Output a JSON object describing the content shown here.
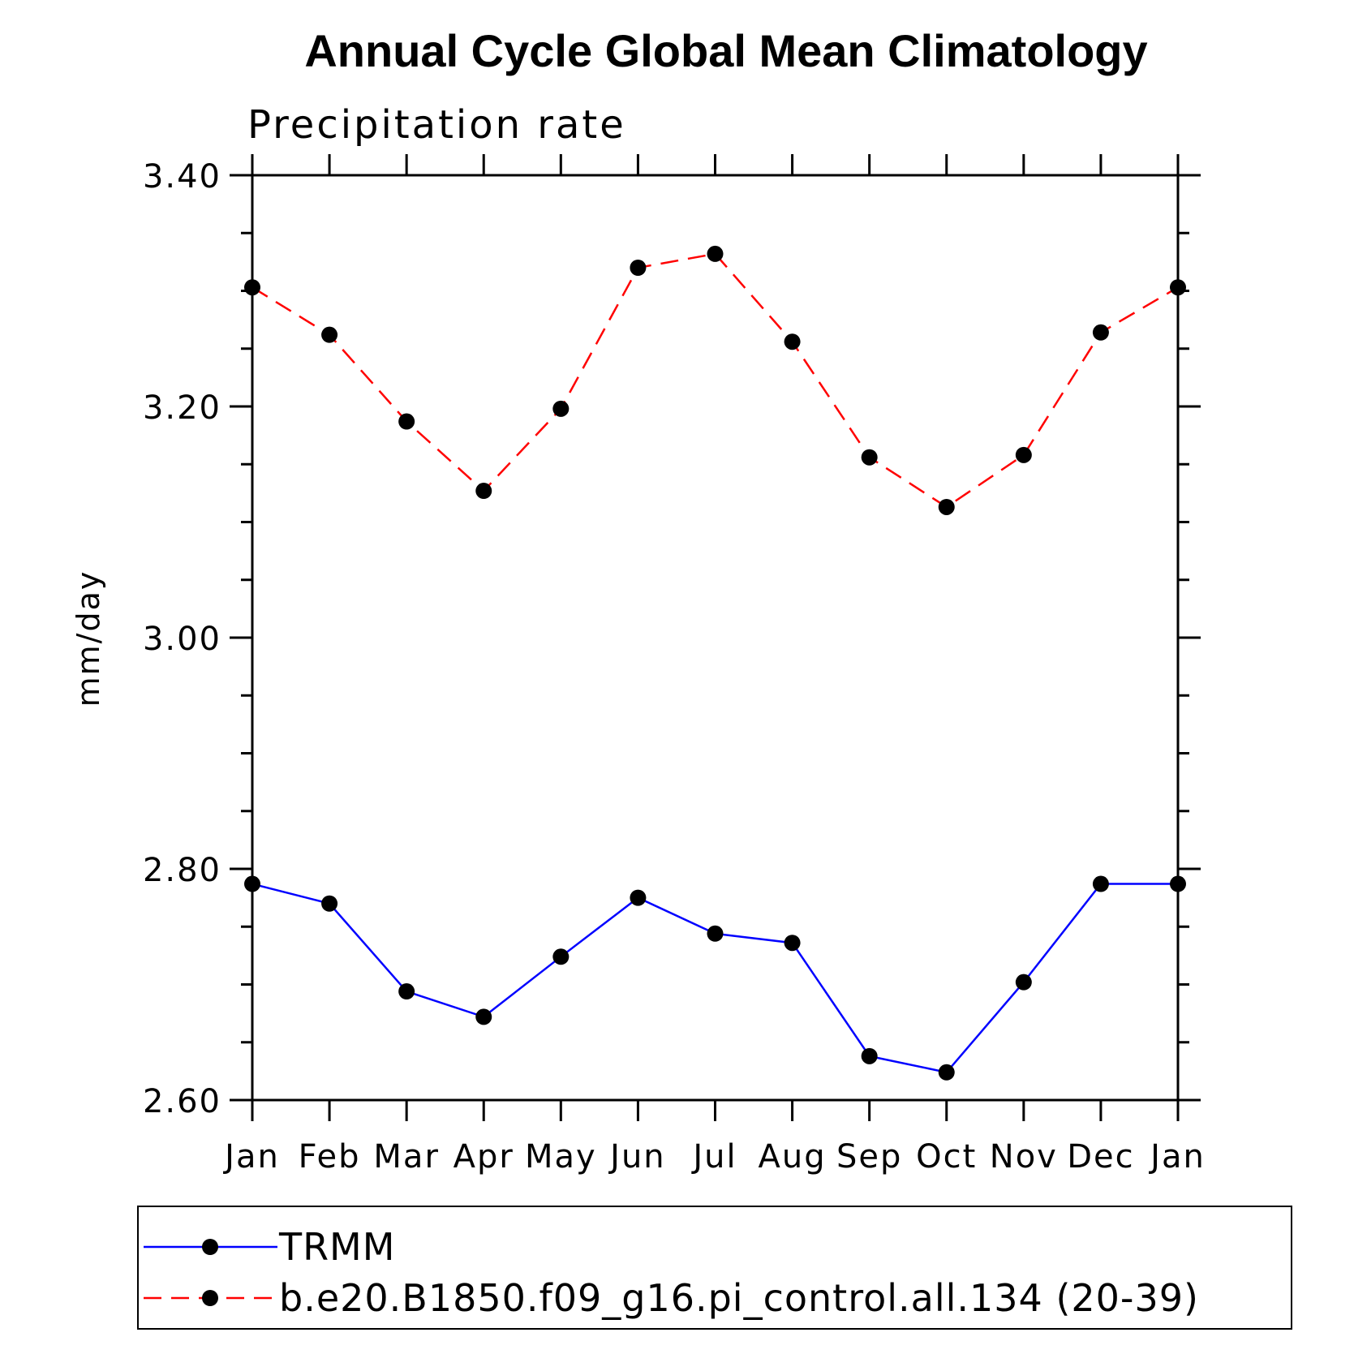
{
  "chart_data": {
    "type": "line",
    "title": "Annual Cycle Global Mean Climatology",
    "subtitle": "Precipitation rate",
    "xlabel": "",
    "ylabel": "mm/day",
    "categories": [
      "Jan",
      "Feb",
      "Mar",
      "Apr",
      "May",
      "Jun",
      "Jul",
      "Aug",
      "Sep",
      "Oct",
      "Nov",
      "Dec",
      "Jan"
    ],
    "ylim": [
      2.6,
      3.4
    ],
    "yticks": [
      "2.60",
      "2.80",
      "3.00",
      "3.20",
      "3.40"
    ],
    "series": [
      {
        "name": "TRMM",
        "color": "#0000ff",
        "dash": "solid",
        "values": [
          2.787,
          2.77,
          2.694,
          2.672,
          2.724,
          2.775,
          2.744,
          2.736,
          2.638,
          2.624,
          2.702,
          2.787,
          2.787
        ]
      },
      {
        "name": "b.e20.B1850.f09_g16.pi_control.all.134 (20-39)",
        "color": "#ff0000",
        "dash": "dashed",
        "values": [
          3.303,
          3.262,
          3.187,
          3.127,
          3.198,
          3.32,
          3.332,
          3.256,
          3.156,
          3.113,
          3.158,
          3.264,
          3.303
        ]
      }
    ],
    "legend": "bottom",
    "grid": false
  }
}
